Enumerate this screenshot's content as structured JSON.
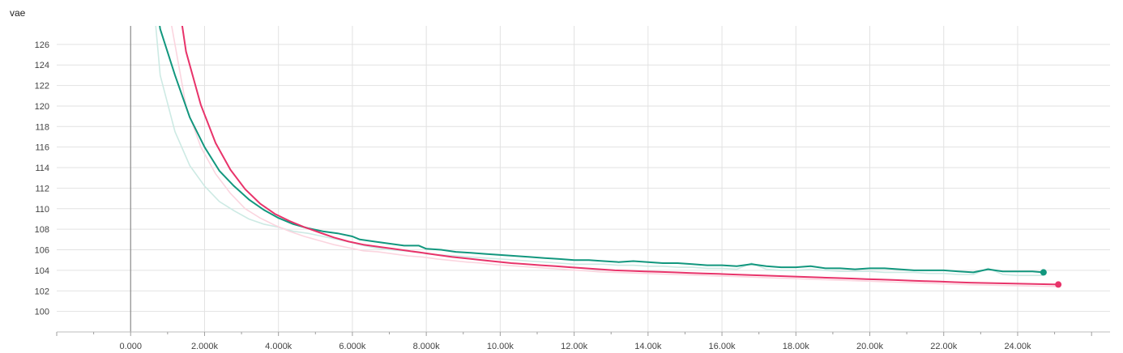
{
  "chart_data": {
    "type": "line",
    "title": "vae",
    "xlabel": "",
    "ylabel": "",
    "xlim": [
      -2000,
      26500
    ],
    "ylim": [
      98.0,
      127.8
    ],
    "x_ticks": [
      {
        "value": 0,
        "label": "0.000"
      },
      {
        "value": 2000,
        "label": "2.000k"
      },
      {
        "value": 4000,
        "label": "4.000k"
      },
      {
        "value": 6000,
        "label": "6.000k"
      },
      {
        "value": 8000,
        "label": "8.000k"
      },
      {
        "value": 10000,
        "label": "10.00k"
      },
      {
        "value": 12000,
        "label": "12.00k"
      },
      {
        "value": 14000,
        "label": "14.00k"
      },
      {
        "value": 16000,
        "label": "16.00k"
      },
      {
        "value": 18000,
        "label": "18.00k"
      },
      {
        "value": 20000,
        "label": "20.00k"
      },
      {
        "value": 22000,
        "label": "22.00k"
      },
      {
        "value": 24000,
        "label": "24.00k"
      }
    ],
    "y_ticks": [
      {
        "value": 100,
        "label": "100"
      },
      {
        "value": 102,
        "label": "102"
      },
      {
        "value": 104,
        "label": "104"
      },
      {
        "value": 106,
        "label": "106"
      },
      {
        "value": 108,
        "label": "108"
      },
      {
        "value": 110,
        "label": "110"
      },
      {
        "value": 112,
        "label": "112"
      },
      {
        "value": 114,
        "label": "114"
      },
      {
        "value": 116,
        "label": "116"
      },
      {
        "value": 118,
        "label": "118"
      },
      {
        "value": 120,
        "label": "120"
      },
      {
        "value": 122,
        "label": "122"
      },
      {
        "value": 124,
        "label": "124"
      },
      {
        "value": 126,
        "label": "126"
      }
    ],
    "grid": true,
    "legend": "none",
    "series": [
      {
        "color": "#12977e",
        "raw_color": "#cdeae4",
        "x": [
          500,
          800,
          1200,
          1600,
          2000,
          2400,
          2800,
          3200,
          3600,
          4000,
          4400,
          4800,
          5200,
          5600,
          6000,
          6200,
          6600,
          7000,
          7400,
          7800,
          8000,
          8400,
          8800,
          9200,
          9600,
          10000,
          10400,
          10800,
          11200,
          11600,
          12000,
          12400,
          12800,
          13200,
          13600,
          14000,
          14400,
          14800,
          15200,
          15600,
          16000,
          16400,
          16800,
          17200,
          17600,
          18000,
          18400,
          18800,
          19200,
          19600,
          20000,
          20400,
          20800,
          21200,
          21600,
          22000,
          22400,
          22800,
          23200,
          23600,
          24000,
          24400,
          24700
        ],
        "y": [
          135.0,
          127.5,
          123.0,
          118.9,
          116.0,
          113.7,
          112.2,
          110.9,
          109.9,
          109.1,
          108.5,
          108.1,
          107.8,
          107.6,
          107.3,
          107.0,
          106.8,
          106.6,
          106.4,
          106.4,
          106.1,
          106.0,
          105.8,
          105.7,
          105.6,
          105.5,
          105.4,
          105.3,
          105.2,
          105.1,
          105.0,
          105.0,
          104.9,
          104.8,
          104.9,
          104.8,
          104.7,
          104.7,
          104.6,
          104.5,
          104.5,
          104.4,
          104.6,
          104.4,
          104.3,
          104.3,
          104.4,
          104.2,
          104.2,
          104.1,
          104.2,
          104.2,
          104.1,
          104.0,
          104.0,
          104.0,
          103.9,
          103.8,
          104.1,
          103.9,
          103.9,
          103.9,
          103.8
        ],
        "raw_y": [
          135.0,
          123.0,
          117.5,
          114.2,
          112.2,
          110.7,
          109.8,
          109.0,
          108.5,
          108.2,
          107.8,
          107.6,
          107.3,
          107.0,
          106.7,
          106.5,
          106.2,
          106.0,
          105.9,
          105.8,
          105.6,
          105.5,
          105.4,
          105.3,
          105.2,
          105.1,
          105.0,
          104.9,
          104.8,
          104.7,
          104.6,
          104.6,
          104.6,
          104.5,
          104.5,
          104.4,
          104.4,
          104.3,
          104.3,
          104.2,
          104.2,
          104.1,
          104.7,
          104.1,
          104.0,
          104.0,
          104.1,
          104.0,
          103.9,
          103.9,
          103.9,
          103.8,
          103.8,
          103.8,
          103.7,
          103.7,
          103.6,
          103.6,
          104.2,
          103.6,
          103.5,
          103.5,
          103.5
        ]
      },
      {
        "color": "#e8336a",
        "raw_color": "#fbd5df",
        "x": [
          1100,
          1500,
          1900,
          2300,
          2700,
          3100,
          3500,
          3900,
          4300,
          4700,
          5100,
          5500,
          5900,
          6300,
          6700,
          7100,
          7500,
          7900,
          8300,
          8700,
          9100,
          9500,
          9900,
          10300,
          10700,
          11100,
          11500,
          11900,
          12300,
          12700,
          13100,
          13500,
          13900,
          14300,
          14700,
          15100,
          15500,
          15900,
          16300,
          16700,
          17100,
          17500,
          17900,
          18300,
          18700,
          19100,
          19500,
          19900,
          20300,
          20700,
          21100,
          21500,
          21900,
          22300,
          22700,
          23100,
          23500,
          23900,
          24300,
          24700,
          25100
        ],
        "y": [
          135.0,
          125.3,
          120.1,
          116.4,
          113.8,
          111.9,
          110.5,
          109.5,
          108.8,
          108.2,
          107.7,
          107.2,
          106.8,
          106.5,
          106.3,
          106.1,
          105.9,
          105.7,
          105.5,
          105.3,
          105.15,
          105.0,
          104.85,
          104.7,
          104.6,
          104.5,
          104.4,
          104.3,
          104.2,
          104.1,
          104.0,
          103.95,
          103.9,
          103.85,
          103.8,
          103.75,
          103.7,
          103.65,
          103.6,
          103.55,
          103.5,
          103.45,
          103.4,
          103.35,
          103.3,
          103.25,
          103.2,
          103.15,
          103.1,
          103.05,
          103.0,
          102.95,
          102.9,
          102.85,
          102.8,
          102.77,
          102.74,
          102.71,
          102.68,
          102.65,
          102.62
        ],
        "raw_y": [
          128.0,
          120.0,
          116.0,
          113.4,
          111.5,
          110.0,
          109.1,
          108.4,
          107.8,
          107.3,
          106.9,
          106.5,
          106.2,
          105.9,
          105.8,
          105.6,
          105.4,
          105.3,
          105.1,
          104.95,
          104.8,
          104.7,
          104.55,
          104.45,
          104.35,
          104.25,
          104.15,
          104.05,
          103.95,
          103.85,
          103.8,
          103.75,
          103.7,
          103.65,
          103.6,
          103.55,
          103.5,
          103.45,
          103.4,
          103.35,
          103.3,
          103.25,
          103.2,
          103.15,
          103.1,
          103.05,
          103.0,
          102.95,
          102.9,
          102.85,
          102.8,
          102.75,
          102.7,
          102.65,
          102.6,
          102.57,
          102.54,
          102.51,
          102.48,
          102.45,
          102.42
        ]
      }
    ]
  }
}
